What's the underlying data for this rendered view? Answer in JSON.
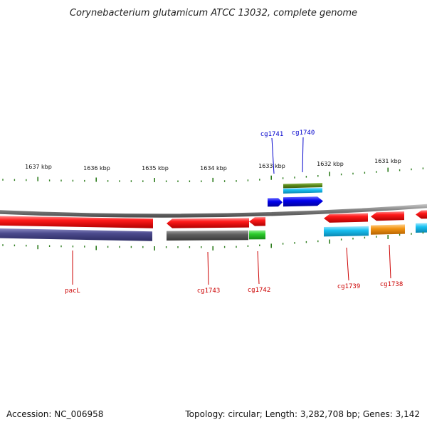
{
  "title": "Corynebacterium glutamicum ATCC 13032, complete genome",
  "footer": {
    "accession": "Accession: NC_006958",
    "summary": "Topology: circular; Length: 3,282,708 bp; Genes: 3,142"
  },
  "scale_ticks": [
    "1637 kbp",
    "1636 kbp",
    "1635 kbp",
    "1634 kbp",
    "1633 kbp",
    "1632 kbp",
    "1631 kbp"
  ],
  "genes": {
    "forward": [
      "cg1741",
      "cg1740"
    ],
    "reverse": [
      "pacL",
      "cg1743",
      "cg1742",
      "cg1739",
      "cg1738"
    ]
  },
  "colors": {
    "forward_label": "#0000cc",
    "reverse_label": "#cc0000",
    "tick": "#2e7d1e",
    "backbone": "#8a8a8a",
    "cds_red": "#ee0000",
    "blue": "#0000ee",
    "purple_feature": "#4b4a8c",
    "gray_feature": "#606060",
    "green_feature": "#2bcc2b",
    "cyan_feature": "#18c0f0",
    "orange_feature": "#f29413",
    "olive_feature": "#5a8a1a"
  }
}
